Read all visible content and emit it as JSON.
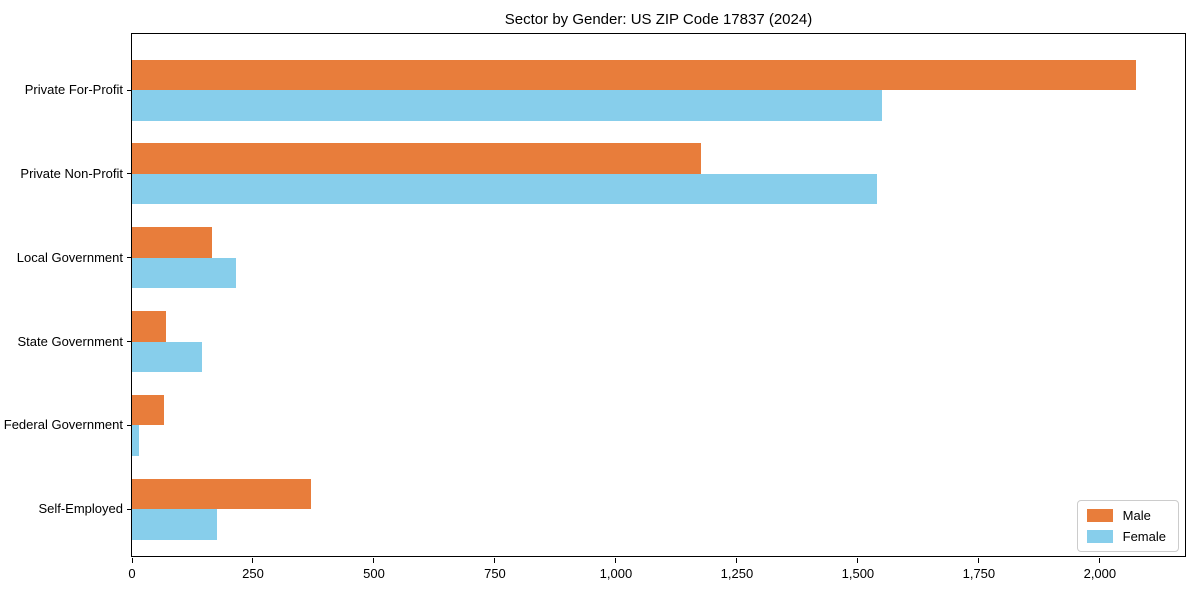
{
  "chart_data": {
    "type": "bar",
    "orientation": "horizontal",
    "title": "Sector by Gender: US ZIP Code 17837 (2024)",
    "categories": [
      "Private For-Profit",
      "Private Non-Profit",
      "Local Government",
      "State Government",
      "Federal Government",
      "Self-Employed"
    ],
    "series": [
      {
        "name": "Male",
        "color": "#e87d3b",
        "values": [
          2075,
          1175,
          165,
          70,
          65,
          370
        ]
      },
      {
        "name": "Female",
        "color": "#87ceeb",
        "values": [
          1550,
          1540,
          215,
          145,
          15,
          175
        ]
      }
    ],
    "xlabel": "",
    "ylabel": "",
    "xlim": [
      0,
      2180
    ],
    "xticks": [
      0,
      250,
      500,
      750,
      1000,
      1250,
      1500,
      1750,
      2000
    ],
    "xtick_labels": [
      "0",
      "250",
      "500",
      "750",
      "1,000",
      "1,250",
      "1,500",
      "1,750",
      "2,000"
    ],
    "grid": false,
    "legend_position": "lower right",
    "background_color": "#ffffff",
    "spine_color": "#000000"
  }
}
